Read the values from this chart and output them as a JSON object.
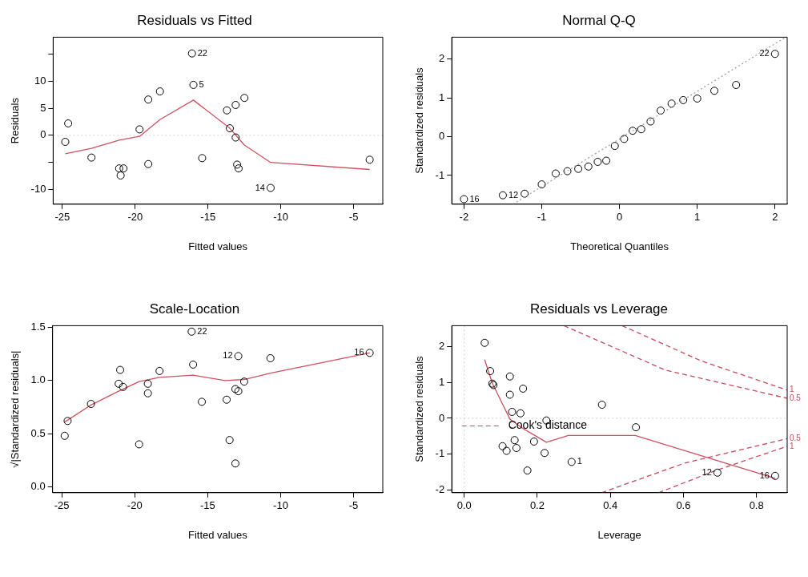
{
  "chart_data": [
    {
      "type": "scatter",
      "title": "Residuals vs Fitted",
      "xlabel": "Fitted values",
      "ylabel": "Residuals",
      "xlim": [
        -25.63,
        -3.0
      ],
      "ylim": [
        -12.7,
        18.1
      ],
      "xticks": [
        -25,
        -20,
        -15,
        -10,
        -5
      ],
      "yticks": [
        -10,
        {
          "value": -5,
          "label": null
        },
        0,
        5,
        10,
        {
          "value": 15,
          "label": null
        }
      ],
      "grid": false,
      "legend": false,
      "series": [
        {
          "color": "#000000",
          "marker": "circle",
          "x": [
            -24.8,
            -24.6,
            -23.0,
            -21.1,
            -20.8,
            -21.0,
            -19.7,
            -19.1,
            -19.1,
            -18.3,
            -16.1,
            -16.0,
            -15.4,
            -13.7,
            -13.5,
            -13.1,
            -13.1,
            -12.5,
            -13.0,
            -12.9,
            -10.7,
            -3.9
          ],
          "values": [
            -1.2,
            2.2,
            -4.1,
            -6.1,
            -6.1,
            -7.4,
            1.1,
            6.6,
            -5.3,
            8.1,
            15.1,
            9.3,
            -4.2,
            4.6,
            1.3,
            5.6,
            -0.4,
            6.9,
            -5.4,
            -6.1,
            -9.7,
            -4.5
          ]
        },
        {
          "type": "line",
          "color": "#d05060",
          "marker": "none",
          "line_style": "solid",
          "x": [
            -24.8,
            -23.0,
            -21.1,
            -19.7,
            -18.3,
            -16.0,
            -13.5,
            -12.5,
            -10.7,
            -3.9
          ],
          "values": [
            -3.4,
            -2.4,
            -0.9,
            -0.2,
            2.9,
            6.5,
            1.3,
            -1.8,
            -5.0,
            -6.3
          ]
        }
      ],
      "ref_lines": [
        {
          "axis": "y",
          "value": 0,
          "color": "#d0d0d0",
          "line_style": "dotted"
        }
      ],
      "annotations": [
        {
          "text": "22",
          "x": -16.1,
          "y": 15.1
        },
        {
          "text": "5",
          "x": -16.0,
          "y": 9.3
        },
        {
          "text": "14",
          "x": -10.7,
          "y": -9.7
        }
      ]
    },
    {
      "type": "scatter",
      "title": "Normal Q-Q",
      "xlabel": "Theoretical Quantiles",
      "ylabel": "Standardized residuals",
      "xlim": [
        -2.157,
        2.157
      ],
      "ylim": [
        -1.74,
        2.56
      ],
      "xticks": [
        -2,
        -1,
        0,
        1,
        2
      ],
      "yticks": [
        -1,
        0,
        1,
        2
      ],
      "grid": false,
      "legend": false,
      "series": [
        {
          "type": "line",
          "color": "#a0a0a0",
          "marker": "none",
          "line_style": "dotted",
          "x": [
            -1.37,
            2.13
          ],
          "values": [
            -1.74,
            2.55
          ]
        },
        {
          "color": "#000000",
          "marker": "circle",
          "x": [
            -2.0,
            -1.5,
            -1.22,
            -1.0,
            -0.82,
            -0.67,
            -0.53,
            -0.4,
            -0.28,
            -0.17,
            -0.06,
            0.06,
            0.17,
            0.28,
            0.4,
            0.53,
            0.67,
            0.82,
            1.0,
            1.22,
            1.5,
            2.0
          ],
          "values": [
            -1.61,
            -1.51,
            -1.47,
            -1.23,
            -0.95,
            -0.89,
            -0.83,
            -0.77,
            -0.65,
            -0.62,
            -0.24,
            -0.06,
            0.15,
            0.19,
            0.39,
            0.67,
            0.85,
            0.94,
            0.98,
            1.18,
            1.33,
            2.13
          ]
        }
      ],
      "annotations": [
        {
          "text": "16",
          "x": -2.0,
          "y": -1.61
        },
        {
          "text": "12",
          "x": -1.5,
          "y": -1.51
        },
        {
          "text": "22",
          "x": 2.0,
          "y": 2.13
        }
      ]
    },
    {
      "type": "scatter",
      "title": "Scale-Location",
      "xlabel": "Fitted values",
      "ylabel": "√|Standardized residuals|",
      "xlim": [
        -25.63,
        -3.0
      ],
      "ylim": [
        -0.055,
        1.516
      ],
      "xticks": [
        -25,
        -20,
        -15,
        -10,
        -5
      ],
      "yticks": [
        {
          "value": 0,
          "label": "0.0"
        },
        0.5,
        {
          "value": 1,
          "label": "1.0"
        },
        1.5
      ],
      "grid": false,
      "legend": false,
      "series": [
        {
          "color": "#000000",
          "marker": "circle",
          "x": [
            -24.8,
            -24.6,
            -23.0,
            -21.1,
            -21.0,
            -20.8,
            -19.7,
            -19.1,
            -19.1,
            -18.3,
            -16.1,
            -16.0,
            -15.4,
            -13.7,
            -13.5,
            -13.1,
            -13.1,
            -12.9,
            -12.9,
            -12.5,
            -10.7,
            -3.9
          ],
          "values": [
            0.48,
            0.62,
            0.78,
            0.97,
            1.1,
            0.94,
            0.4,
            0.97,
            0.88,
            1.09,
            1.46,
            1.15,
            0.8,
            0.82,
            0.44,
            0.22,
            0.92,
            0.9,
            1.23,
            0.99,
            1.21,
            1.26
          ]
        },
        {
          "type": "line",
          "color": "#d05060",
          "marker": "none",
          "line_style": "solid",
          "x": [
            -24.8,
            -23.0,
            -21.1,
            -19.7,
            -18.3,
            -16.0,
            -13.8,
            -12.5,
            -10.7,
            -3.9
          ],
          "values": [
            0.61,
            0.77,
            0.9,
            0.99,
            1.03,
            1.05,
            1.0,
            1.01,
            1.07,
            1.26
          ]
        }
      ],
      "annotations": [
        {
          "text": "22",
          "x": -16.1,
          "y": 1.46
        },
        {
          "text": "12",
          "x": -12.9,
          "y": 1.23
        },
        {
          "text": "16",
          "x": -3.9,
          "y": 1.26
        }
      ]
    },
    {
      "type": "scatter",
      "title": "Residuals vs Leverage",
      "xlabel": "Leverage",
      "ylabel": "Standardized residuals",
      "xlim": [
        -0.034,
        0.884
      ],
      "ylim": [
        -2.08,
        2.59
      ],
      "xticks": [
        {
          "value": 0,
          "label": "0.0"
        },
        0.2,
        0.4,
        0.6,
        0.8
      ],
      "yticks": [
        -2,
        -1,
        0,
        1,
        2
      ],
      "grid": false,
      "legend": false,
      "series": [
        {
          "color": "#000000",
          "marker": "circle",
          "x": [
            0.056,
            0.071,
            0.077,
            0.08,
            0.125,
            0.125,
            0.131,
            0.154,
            0.161,
            0.138,
            0.143,
            0.105,
            0.116,
            0.173,
            0.191,
            0.22,
            0.225,
            0.294,
            0.377,
            0.47,
            0.693,
            0.851
          ],
          "values": [
            2.11,
            1.32,
            0.97,
            0.93,
            1.17,
            0.66,
            0.18,
            0.14,
            0.83,
            -0.61,
            -0.83,
            -0.78,
            -0.91,
            -1.46,
            -0.65,
            -0.97,
            -0.06,
            -1.22,
            0.38,
            -0.25,
            -1.52,
            -1.61
          ]
        },
        {
          "type": "line",
          "color": "#d05060",
          "marker": "none",
          "line_style": "solid",
          "x": [
            0.056,
            0.077,
            0.125,
            0.157,
            0.225,
            0.285,
            0.468,
            0.851
          ],
          "values": [
            1.64,
            0.98,
            -0.02,
            -0.26,
            -0.67,
            -0.48,
            -0.48,
            -1.68
          ]
        },
        {
          "type": "line",
          "name": "1",
          "color": "#c84a5a",
          "marker": "none",
          "line_style": "dashed",
          "x": [
            0.432,
            0.65,
            0.884
          ],
          "values": [
            2.59,
            1.6,
            0.79
          ]
        },
        {
          "type": "line",
          "name": "0.5",
          "color": "#c84a5a",
          "marker": "none",
          "line_style": "dashed",
          "x": [
            0.273,
            0.55,
            0.884
          ],
          "values": [
            2.59,
            1.35,
            0.56
          ]
        },
        {
          "type": "line",
          "name": "0.5",
          "color": "#c84a5a",
          "marker": "none",
          "line_style": "dashed",
          "x": [
            0.376,
            0.604,
            0.884
          ],
          "values": [
            -2.08,
            -1.25,
            -0.57
          ]
        },
        {
          "type": "line",
          "name": "1",
          "color": "#c84a5a",
          "marker": "none",
          "line_style": "dashed",
          "x": [
            0.532,
            0.683,
            0.884
          ],
          "values": [
            -2.08,
            -1.48,
            -0.78
          ]
        }
      ],
      "ref_lines": [
        {
          "axis": "y",
          "value": 0,
          "color": "#d0d0d0",
          "line_style": "dotted"
        },
        {
          "axis": "x",
          "value": 0,
          "color": "#d0d0d0",
          "line_style": "dotted"
        }
      ],
      "annotations": [
        "Cook's distance",
        {
          "text": "1",
          "x": 0.294,
          "y": -1.22
        },
        {
          "text": "12",
          "x": 0.693,
          "y": -1.52
        },
        {
          "text": "16",
          "x": 0.851,
          "y": -1.61
        }
      ]
    }
  ]
}
